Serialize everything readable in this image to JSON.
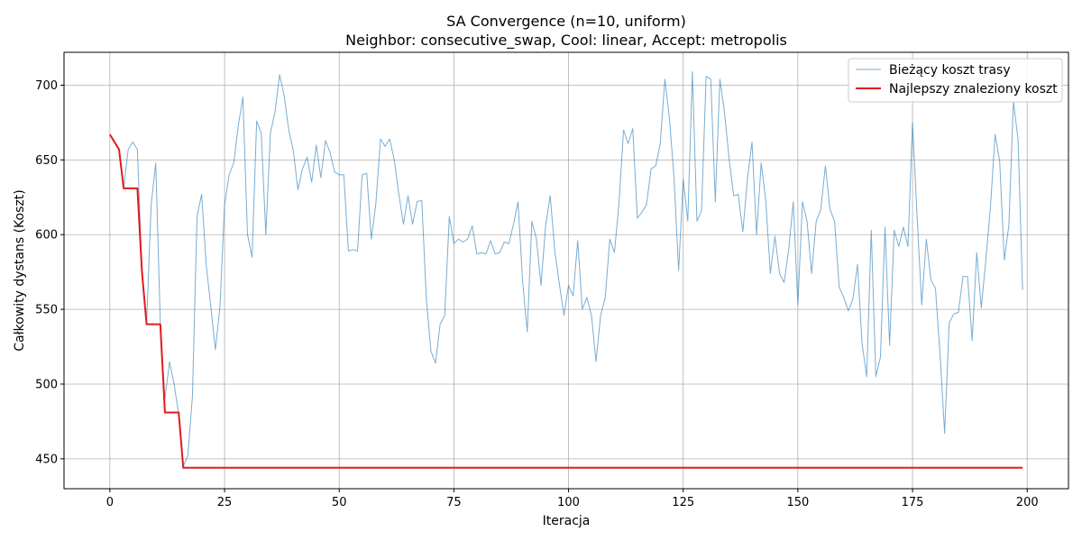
{
  "chart_data": {
    "type": "line",
    "title": "SA Convergence (n=10, uniform)",
    "subtitle": "Neighbor: consecutive_swap, Cool: linear, Accept: metropolis",
    "xlabel": "Iteracja",
    "ylabel": "Całkowity dystans (Koszt)",
    "xlim": [
      -10,
      209
    ],
    "ylim": [
      430,
      722
    ],
    "xticks": [
      0,
      25,
      50,
      75,
      100,
      125,
      150,
      175,
      200
    ],
    "yticks": [
      450,
      500,
      550,
      600,
      650,
      700
    ],
    "grid": true,
    "legend_position": "top-right",
    "colors": {
      "current": "#1f77b4",
      "best": "#e31a1c",
      "grid": "#b0b0b0"
    },
    "series": [
      {
        "name": "Bieżący koszt trasy",
        "values": [
          667,
          662,
          657,
          631,
          657,
          662,
          657,
          575,
          540,
          620,
          648,
          540,
          490,
          515,
          500,
          480,
          445,
          452,
          492,
          612,
          627,
          580,
          552,
          523,
          552,
          620,
          640,
          648,
          673,
          692,
          600,
          585,
          676,
          668,
          600,
          668,
          682,
          707,
          693,
          670,
          656,
          630,
          644,
          652,
          635,
          660,
          638,
          663,
          655,
          642,
          640,
          640,
          589,
          590,
          589,
          640,
          641,
          597,
          621,
          664,
          659,
          664,
          650,
          627,
          607,
          626,
          607,
          622,
          623,
          557,
          522,
          514,
          540,
          546,
          612,
          594,
          597,
          595,
          597,
          606,
          587,
          588,
          587,
          596,
          587,
          588,
          595,
          594,
          607,
          622,
          568,
          535,
          609,
          597,
          566,
          606,
          626,
          589,
          567,
          546,
          566,
          559,
          596,
          550,
          558,
          546,
          515,
          546,
          558,
          597,
          588,
          621,
          670,
          661,
          671,
          611,
          615,
          620,
          644,
          646,
          661,
          704,
          678,
          638,
          576,
          637,
          609,
          709,
          609,
          616,
          706,
          704,
          622,
          704,
          682,
          651,
          626,
          627,
          602,
          637,
          662,
          600,
          648,
          623,
          574,
          599,
          574,
          568,
          590,
          622,
          553,
          622,
          609,
          574,
          609,
          617,
          646,
          617,
          609,
          565,
          558,
          549,
          557,
          580,
          527,
          505,
          603,
          505,
          518,
          605,
          526,
          603,
          592,
          605,
          592,
          675,
          612,
          553,
          597,
          570,
          564,
          520,
          467,
          541,
          547,
          548,
          572,
          572,
          529,
          588,
          551,
          584,
          619,
          667,
          649,
          583,
          606,
          689,
          664,
          563
        ]
      },
      {
        "name": "Najlepszy znaleziony koszt",
        "values": [
          667,
          662,
          657,
          631,
          631,
          631,
          631,
          575,
          540,
          540,
          540,
          540,
          481,
          481,
          481,
          481,
          444,
          444,
          444,
          444,
          444,
          444,
          444,
          444,
          444,
          444,
          444,
          444,
          444,
          444,
          444,
          444,
          444,
          444,
          444,
          444,
          444,
          444,
          444,
          444,
          444,
          444,
          444,
          444,
          444,
          444,
          444,
          444,
          444,
          444,
          444,
          444,
          444,
          444,
          444,
          444,
          444,
          444,
          444,
          444,
          444,
          444,
          444,
          444,
          444,
          444,
          444,
          444,
          444,
          444,
          444,
          444,
          444,
          444,
          444,
          444,
          444,
          444,
          444,
          444,
          444,
          444,
          444,
          444,
          444,
          444,
          444,
          444,
          444,
          444,
          444,
          444,
          444,
          444,
          444,
          444,
          444,
          444,
          444,
          444,
          444,
          444,
          444,
          444,
          444,
          444,
          444,
          444,
          444,
          444,
          444,
          444,
          444,
          444,
          444,
          444,
          444,
          444,
          444,
          444,
          444,
          444,
          444,
          444,
          444,
          444,
          444,
          444,
          444,
          444,
          444,
          444,
          444,
          444,
          444,
          444,
          444,
          444,
          444,
          444,
          444,
          444,
          444,
          444,
          444,
          444,
          444,
          444,
          444,
          444,
          444,
          444,
          444,
          444,
          444,
          444,
          444,
          444,
          444,
          444,
          444,
          444,
          444,
          444,
          444,
          444,
          444,
          444,
          444,
          444,
          444,
          444,
          444,
          444,
          444,
          444,
          444,
          444,
          444,
          444,
          444,
          444,
          444,
          444,
          444,
          444,
          444,
          444,
          444,
          444,
          444,
          444,
          444,
          444,
          444,
          444,
          444,
          444,
          444,
          444
        ]
      }
    ]
  }
}
